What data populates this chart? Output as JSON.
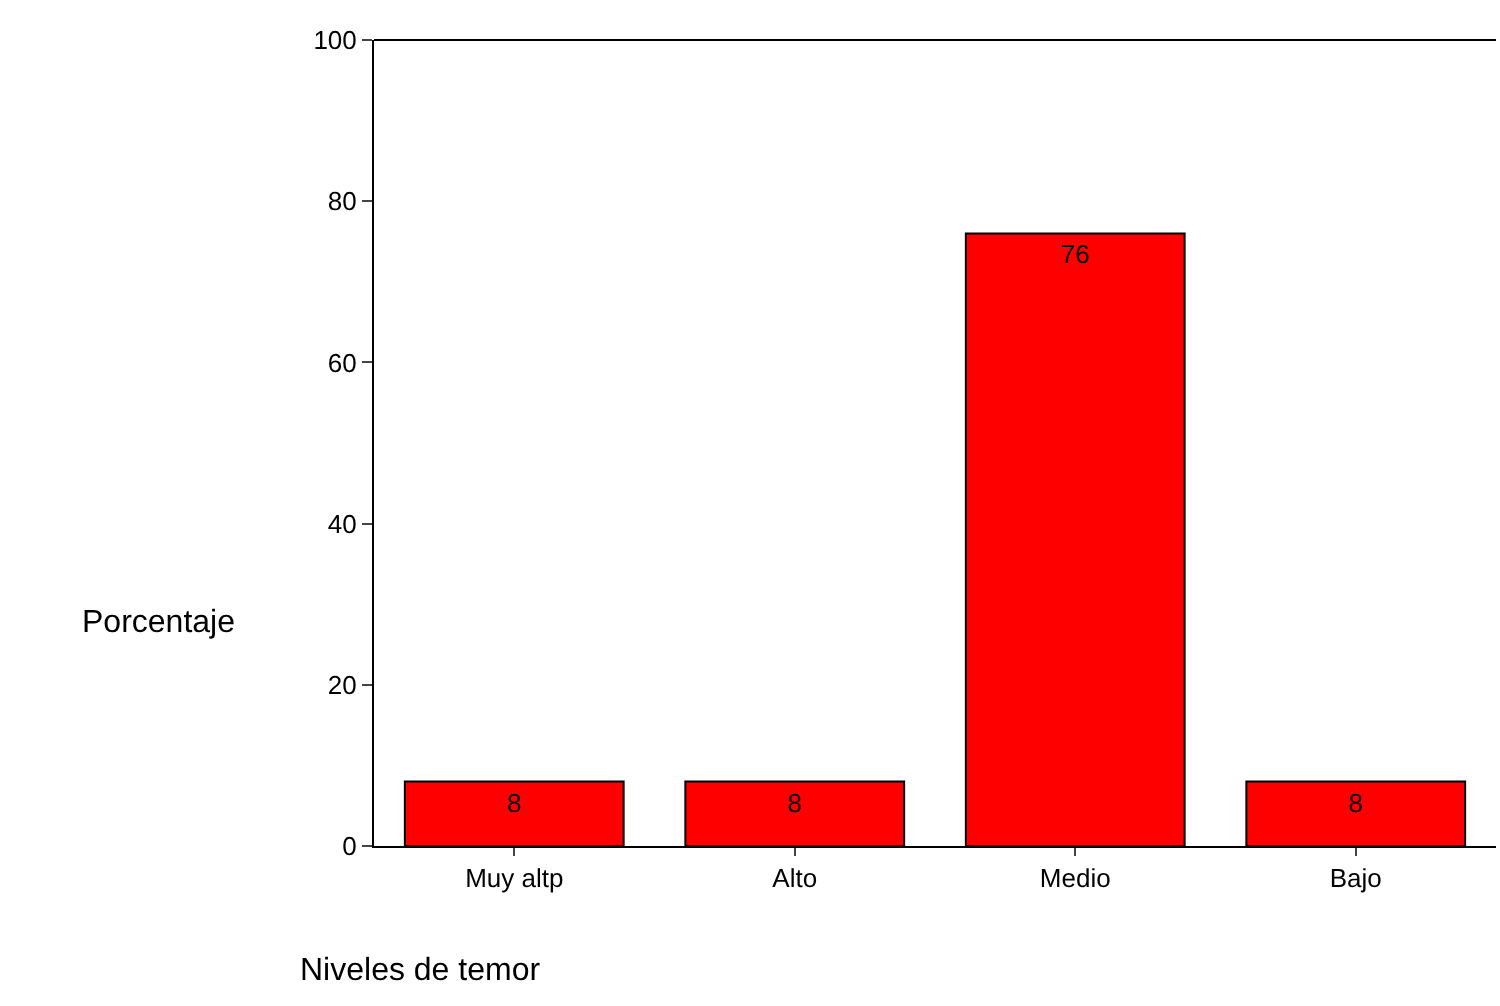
{
  "chart_data": {
    "type": "bar",
    "xlabel": "Niveles de temor",
    "ylabel": "Porcentaje",
    "categories": [
      "Muy altp",
      "Alto",
      "Medio",
      "Bajo"
    ],
    "values": [
      8,
      8,
      76,
      8
    ],
    "color": "#ff0000",
    "ylim": [
      0,
      100
    ],
    "yticks": [
      0,
      20,
      40,
      60,
      80,
      100
    ],
    "data_labels": true
  }
}
